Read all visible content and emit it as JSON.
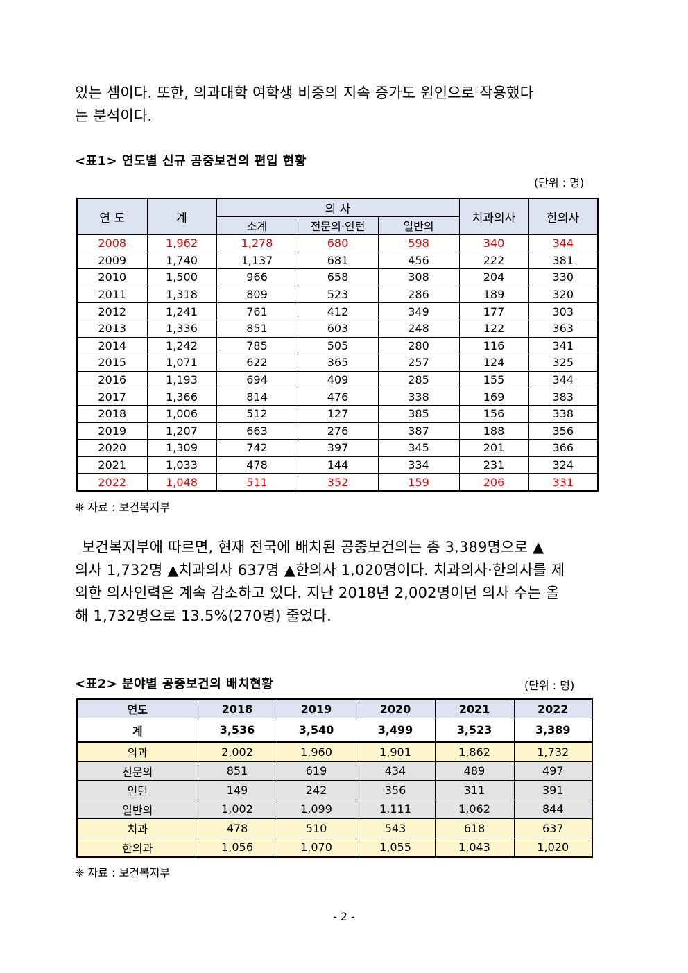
{
  "paragraph1": {
    "line1": "있는 셈이다. 또한, 의과대학 여학생 비중의 지속 증가도 원인으로 작용했다",
    "line2": "는 분석이다."
  },
  "table1": {
    "caption": "<표1> 연도별 신규 공중보건의 편입 현황",
    "unit": "(단위 : 명)",
    "headers": {
      "year": "연 도",
      "total": "계",
      "doctor": "의 사",
      "subtotal": "소계",
      "specialist_intern": "전문의·인턴",
      "general": "일반의",
      "dentist": "치과의사",
      "oriental": "한의사"
    },
    "rows": [
      [
        "2008",
        "1,962",
        "1,278",
        "680",
        "598",
        "340",
        "344"
      ],
      [
        "2009",
        "1,740",
        "1,137",
        "681",
        "456",
        "222",
        "381"
      ],
      [
        "2010",
        "1,500",
        "966",
        "658",
        "308",
        "204",
        "330"
      ],
      [
        "2011",
        "1,318",
        "809",
        "523",
        "286",
        "189",
        "320"
      ],
      [
        "2012",
        "1,241",
        "761",
        "412",
        "349",
        "177",
        "303"
      ],
      [
        "2013",
        "1,336",
        "851",
        "603",
        "248",
        "122",
        "363"
      ],
      [
        "2014",
        "1,242",
        "785",
        "505",
        "280",
        "116",
        "341"
      ],
      [
        "2015",
        "1,071",
        "622",
        "365",
        "257",
        "124",
        "325"
      ],
      [
        "2016",
        "1,193",
        "694",
        "409",
        "285",
        "155",
        "344"
      ],
      [
        "2017",
        "1,366",
        "814",
        "476",
        "338",
        "169",
        "383"
      ],
      [
        "2018",
        "1,006",
        "512",
        "127",
        "385",
        "156",
        "338"
      ],
      [
        "2019",
        "1,207",
        "663",
        "276",
        "387",
        "188",
        "356"
      ],
      [
        "2020",
        "1,309",
        "742",
        "397",
        "345",
        "201",
        "366"
      ],
      [
        "2021",
        "1,033",
        "478",
        "144",
        "334",
        "231",
        "324"
      ],
      [
        "2022",
        "1,048",
        "511",
        "352",
        "159",
        "206",
        "331"
      ]
    ],
    "highlight_color": "#e00000",
    "source": "❈ 자료 : 보건복지부"
  },
  "paragraph2": {
    "line1": "보건복지부에 따르면, 현재 전국에 배치된 공중보건의는 총 3,389명으로 ▲",
    "line2": "의사 1,732명 ▲치과의사 637명 ▲한의사 1,020명이다. 치과의사·한의사를 제",
    "line3": "외한 의사인력은 계속 감소하고 있다. 지난 2018년 2,002명이던 의사 수는 올",
    "line4": "해 1,732명으로 13.5%(270명) 줄었다."
  },
  "table2": {
    "caption": "<표2> 분야별 공중보건의 배치현황",
    "unit": "(단위 : 명)",
    "headers": [
      "연도",
      "2018",
      "2019",
      "2020",
      "2021",
      "2022"
    ],
    "total": [
      "계",
      "3,536",
      "3,540",
      "3,499",
      "3,523",
      "3,389"
    ],
    "rows": [
      [
        "의과",
        "2,002",
        "1,960",
        "1,901",
        "1,862",
        "1,732"
      ],
      [
        "전문의",
        "851",
        "619",
        "434",
        "489",
        "497"
      ],
      [
        "인턴",
        "149",
        "242",
        "356",
        "311",
        "391"
      ],
      [
        "일반의",
        "1,002",
        "1,099",
        "1,111",
        "1,062",
        "844"
      ],
      [
        "치과",
        "478",
        "510",
        "543",
        "618",
        "637"
      ],
      [
        "한의과",
        "1,056",
        "1,070",
        "1,055",
        "1,043",
        "1,020"
      ]
    ],
    "source": "❈ 자료 : 보건복지부"
  },
  "page_number": "- 2 -"
}
